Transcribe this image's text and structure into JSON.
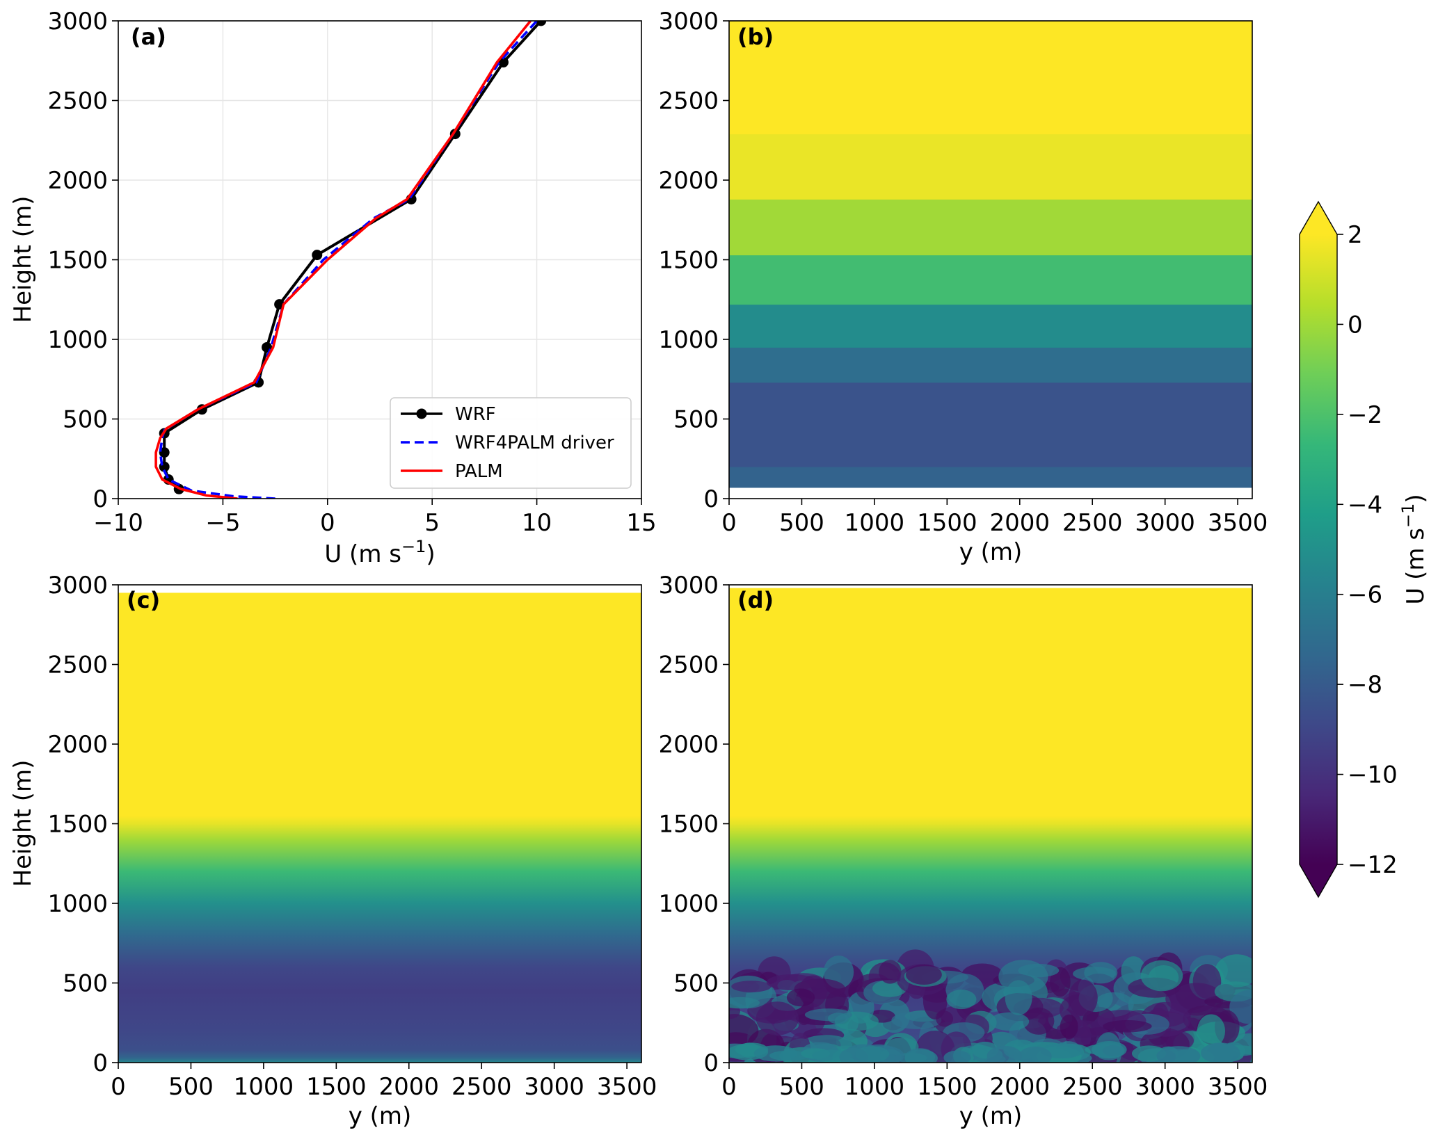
{
  "colormap": [
    "#440154",
    "#482878",
    "#3e4989",
    "#31688e",
    "#26828e",
    "#1f9e89",
    "#35b779",
    "#6ece58",
    "#b5de2b",
    "#fde725"
  ],
  "colorbar": {
    "label_main": "U (m s",
    "label_exp": "−1",
    "label_close": ")",
    "min": -12,
    "max": 2,
    "ticks": [
      2,
      0,
      -2,
      -4,
      -6,
      -8,
      -10,
      -12
    ],
    "tick_labels": [
      "2",
      "0",
      "−2",
      "−4",
      "−6",
      "−8",
      "−10",
      "−12"
    ],
    "extend": "both"
  },
  "chart_data": [
    {
      "panel": "(a)",
      "type": "line",
      "xlabel_main": "U (m s",
      "xlabel_exp": "−1",
      "xlabel_close": ")",
      "ylabel": "Height (m)",
      "xlim": [
        -10,
        15
      ],
      "ylim": [
        0,
        3000
      ],
      "xticks": [
        -10,
        -5,
        0,
        5,
        10,
        15
      ],
      "xtick_labels": [
        "−10",
        "−5",
        "0",
        "5",
        "10",
        "15"
      ],
      "yticks": [
        0,
        500,
        1000,
        1500,
        2000,
        2500,
        3000
      ],
      "ytick_labels": [
        "0",
        "500",
        "1000",
        "1500",
        "2000",
        "2500",
        "3000"
      ],
      "grid": true,
      "legend_position": "lower-right",
      "series": [
        {
          "name": "WRF",
          "color": "#000000",
          "style": "solid",
          "marker": "circle",
          "x": [
            -7.1,
            -7.6,
            -7.8,
            -7.8,
            -7.8,
            -6.0,
            -3.3,
            -2.9,
            -2.3,
            -0.5,
            4.0,
            6.1,
            8.4,
            10.2
          ],
          "y": [
            60,
            120,
            200,
            290,
            410,
            560,
            730,
            950,
            1220,
            1530,
            1880,
            2290,
            2740,
            3000
          ]
        },
        {
          "name": "WRF4PALM driver",
          "color": "#0000ff",
          "style": "dashed",
          "marker": "none",
          "x": [
            -2.5,
            -4.5,
            -6.5,
            -7.6,
            -7.9,
            -8.0,
            -7.9,
            -7.8,
            -6.2,
            -3.4,
            -2.7,
            -2.1,
            -0.2,
            2.2,
            3.9,
            6.0,
            8.2,
            10.0
          ],
          "y": [
            0,
            15,
            50,
            120,
            200,
            290,
            380,
            430,
            560,
            730,
            950,
            1220,
            1500,
            1760,
            1880,
            2290,
            2740,
            3000
          ]
        },
        {
          "name": "PALM",
          "color": "#ff0000",
          "style": "solid",
          "marker": "none",
          "x": [
            -4.3,
            -5.8,
            -7.0,
            -7.9,
            -8.2,
            -8.2,
            -8.0,
            -7.7,
            -6.2,
            -3.5,
            -2.6,
            -2.1,
            0.0,
            2.3,
            3.8,
            6.0,
            8.1,
            9.7
          ],
          "y": [
            0,
            20,
            60,
            120,
            200,
            290,
            380,
            440,
            560,
            730,
            950,
            1220,
            1500,
            1760,
            1880,
            2290,
            2740,
            3000
          ]
        }
      ]
    },
    {
      "panel": "(b)",
      "type": "heatmap",
      "xlabel": "y (m)",
      "ylabel": "",
      "xlim": [
        0,
        3600
      ],
      "ylim": [
        0,
        3000
      ],
      "xticks": [
        0,
        500,
        1000,
        1500,
        2000,
        2500,
        3000,
        3500
      ],
      "yticks": [
        0,
        500,
        1000,
        1500,
        2000,
        2500,
        3000
      ],
      "value_layers": [
        {
          "z0": 70,
          "z1": 200,
          "u": -7.6
        },
        {
          "z0": 200,
          "z1": 730,
          "u": -8.4
        },
        {
          "z0": 730,
          "z1": 950,
          "u": -7.0
        },
        {
          "z0": 950,
          "z1": 1220,
          "u": -5.2
        },
        {
          "z0": 1220,
          "z1": 1530,
          "u": -2.3
        },
        {
          "z0": 1530,
          "z1": 1880,
          "u": 0.0
        },
        {
          "z0": 1880,
          "z1": 2290,
          "u": 1.6
        },
        {
          "z0": 2290,
          "z1": 3000,
          "u": 2.0
        }
      ]
    },
    {
      "panel": "(c)",
      "type": "heatmap",
      "xlabel": "y (m)",
      "ylabel": "Height (m)",
      "xlim": [
        0,
        3600
      ],
      "ylim": [
        0,
        3000
      ],
      "xticks": [
        0,
        500,
        1000,
        1500,
        2000,
        2500,
        3000,
        3500
      ],
      "yticks": [
        0,
        500,
        1000,
        1500,
        2000,
        2500,
        3000
      ],
      "value_profile": {
        "z": [
          0,
          30,
          80,
          200,
          450,
          600,
          800,
          1000,
          1200,
          1400,
          1500,
          1550,
          2950
        ],
        "u": [
          -5.5,
          -7.5,
          -8.6,
          -9.0,
          -9.4,
          -9.0,
          -7.2,
          -5.0,
          -2.5,
          0.0,
          1.5,
          2.0,
          2.0
        ]
      },
      "top": 2950
    },
    {
      "panel": "(d)",
      "type": "heatmap",
      "xlabel": "y (m)",
      "ylabel": "",
      "xlim": [
        0,
        3600
      ],
      "ylim": [
        0,
        3000
      ],
      "xticks": [
        0,
        500,
        1000,
        1500,
        2000,
        2500,
        3000,
        3500
      ],
      "yticks": [
        0,
        500,
        1000,
        1500,
        2000,
        2500,
        3000
      ],
      "value_profile": {
        "z": [
          0,
          30,
          80,
          200,
          450,
          600,
          800,
          1000,
          1200,
          1400,
          1500,
          1550,
          2950
        ],
        "u": [
          -5.5,
          -7.5,
          -8.6,
          -9.0,
          -9.4,
          -9.0,
          -7.2,
          -5.0,
          -2.5,
          0.0,
          1.5,
          2.0,
          2.0
        ]
      },
      "turbulent_below": 620,
      "top": 2980
    }
  ]
}
